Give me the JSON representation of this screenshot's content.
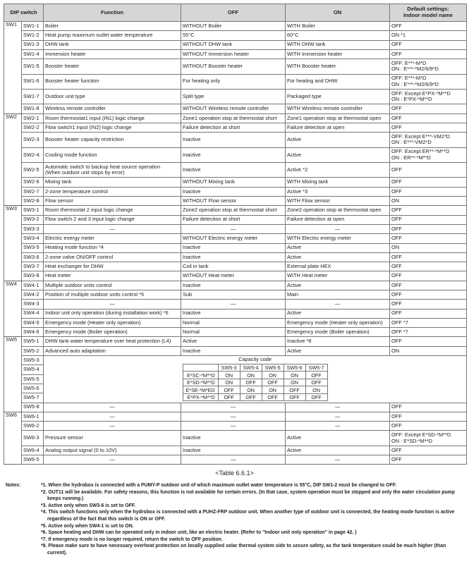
{
  "header": {
    "dip_switch": "DIP switch",
    "function": "Function",
    "off": "OFF",
    "on": "ON",
    "default": "Default settings:\nIndoor model name"
  },
  "groups": [
    {
      "name": "SW1",
      "rows": [
        {
          "id": "SW1-1",
          "function": "Boiler",
          "off": "WITHOUT Boiler",
          "on": "WITH Boiler",
          "default": "OFF"
        },
        {
          "id": "SW1-2",
          "function": "Heat pump maximum outlet water temperature",
          "off": "55°C",
          "on": "60°C",
          "default": "ON *1"
        },
        {
          "id": "SW1-3",
          "function": "DHW tank",
          "off": "WITHOUT DHW tank",
          "on": "WITH DHW tank",
          "default": "OFF"
        },
        {
          "id": "SW1-4",
          "function": "Immersion heater",
          "off": "WITHOUT Immersion heater",
          "on": "WITH Immersion heater",
          "default": "OFF"
        },
        {
          "id": "SW1-5",
          "function": "Booster heater",
          "off": "WITHOUT Booster heater",
          "on": "WITH Booster heater",
          "default": "OFF: E***-M*D\nON  : E***-*M2/6/9*D"
        },
        {
          "id": "SW1-6",
          "function": "Booster heater function",
          "off": "For heating only",
          "on": "For heating and DHW",
          "default": "OFF: E***-M*D\nON  : E***-*M2/6/9*D"
        },
        {
          "id": "SW1-7",
          "function": "Outdoor unit type",
          "off": "Split type",
          "on": "Packaged type",
          "default": "OFF: Except E*PX-*M**D\nON :  E*PX-*M**D"
        },
        {
          "id": "SW1-8",
          "function": "Wireless remote controller",
          "off": "WITHOUT Wireless remote controller",
          "on": "WITH Wireless remote controller",
          "default": "OFF"
        }
      ]
    },
    {
      "name": "SW2",
      "rows": [
        {
          "id": "SW2-1",
          "function": "Room thermostat1 input (IN1) logic change",
          "off": "Zone1 operation stop at thermostat short",
          "on": "Zone1 operation stop at thermostat open",
          "default": "OFF"
        },
        {
          "id": "SW2-2",
          "function": "Flow switch1 input (IN2) logic change",
          "off": "Failure detection at short",
          "on": "Failure detection at open",
          "default": "OFF"
        },
        {
          "id": "SW2-3",
          "function": "Booster heater capacity restriction",
          "off": "Inactive",
          "on": "Active",
          "default": "OFF: Except E***-VM2*D\nON  : E***-VM2*D"
        },
        {
          "id": "SW2-4",
          "function": "Cooling mode function",
          "off": "Inactive",
          "on": "Active",
          "default": "OFF: Except ER**-*M**D\nON  : ER**-*M**D"
        },
        {
          "id": "SW2-5",
          "function": "Automatic switch to backup heat source operation\n(When outdoor unit stops by error)",
          "off": "Inactive",
          "on": "Active *2",
          "default": "OFF"
        },
        {
          "id": "SW2-6",
          "function": "Mixing tank",
          "off": "WITHOUT Mixing tank",
          "on": "WITH Mixing tank",
          "default": "OFF"
        },
        {
          "id": "SW2-7",
          "function": "2-zone temperature control",
          "off": "Inactive",
          "on": "Active *3",
          "default": "OFF"
        },
        {
          "id": "SW2-8",
          "function": "Flow sensor",
          "off": "WITHOUT Flow sensor",
          "on": "WITH Flow sensor",
          "default": "ON"
        }
      ]
    },
    {
      "name": "SW3",
      "rows": [
        {
          "id": "SW3-1",
          "function": "Room thermostat 2 input logic change",
          "off": "Zone2 operation stop at thermostat short",
          "on": "Zone2 operation stop at thermostat open",
          "default": "OFF"
        },
        {
          "id": "SW3-2",
          "function": "Flow switch 2 and 3 input logic change",
          "off": "Failure detection at short",
          "on": "Failure detection at open",
          "default": "OFF"
        },
        {
          "id": "SW3-3",
          "function": "—",
          "off": "—",
          "on": "—",
          "default": "OFF"
        },
        {
          "id": "SW3-4",
          "function": "Electric energy meter",
          "off": "WITHOUT Electric energy meter",
          "on": "WITH Electric energy meter",
          "default": "OFF"
        },
        {
          "id": "SW3-5",
          "function": "Heating mode function *4",
          "off": "Inactive",
          "on": "Active",
          "default": "ON"
        },
        {
          "id": "SW3-6",
          "function": "2-zone valve ON/OFF control",
          "off": "Inactive",
          "on": "Active",
          "default": "OFF"
        },
        {
          "id": "SW3-7",
          "function": "Heat exchanger for DHW",
          "off": "Coil in tank",
          "on": "External plate HEX",
          "default": "OFF"
        },
        {
          "id": "SW3-8",
          "function": "Heat meter",
          "off": "WITHOUT Heat meter",
          "on": "WITH Heat meter",
          "default": "OFF"
        }
      ]
    },
    {
      "name": "SW4",
      "rows": [
        {
          "id": "SW4-1",
          "function": "Multiple outdoor units control",
          "off": "Inactive",
          "on": "Active",
          "default": "OFF"
        },
        {
          "id": "SW4-2",
          "function": "Position of multiple outdoor units control *5",
          "off": "Sub",
          "on": "Main",
          "default": "OFF"
        },
        {
          "id": "SW4-3",
          "function": "—",
          "off": "—",
          "on": "—",
          "default": "OFF"
        },
        {
          "id": "SW4-4",
          "function": "Indoor unit only operation (during installation work) *6",
          "off": "Inactive",
          "on": "Active",
          "default": "OFF"
        },
        {
          "id": "SW4-5",
          "function": "Emergency mode (Heater only operation)",
          "off": "Normal",
          "on": "Emergency mode (Heater only operation)",
          "default": "OFF *7"
        },
        {
          "id": "SW4-6",
          "function": "Emergency mode (Boiler operation)",
          "off": "Normal",
          "on": "Emergency mode (Boiler operation)",
          "default": "OFF *7"
        }
      ]
    },
    {
      "name": "SW5",
      "rows": [
        {
          "id": "SW5-1",
          "function": "DHW tank water temperature over heat protection (L4)",
          "off": "Active",
          "on": "Inactive *8",
          "default": "OFF"
        },
        {
          "id": "SW5-2",
          "function": "Advanced auto adaptation",
          "off": "Inactive",
          "on": "Active",
          "default": "ON"
        },
        {
          "id": "SW5-3",
          "capacity": true
        },
        {
          "id": "SW5-4",
          "capacity": true
        },
        {
          "id": "SW5-5",
          "capacity": true
        },
        {
          "id": "SW5-6",
          "capacity": true
        },
        {
          "id": "SW5-7",
          "capacity": true
        },
        {
          "id": "SW5-8",
          "function": "—",
          "off": "—",
          "on": "—",
          "default": "OFF"
        }
      ]
    },
    {
      "name": "SW6",
      "rows": [
        {
          "id": "SW6-1",
          "function": "—",
          "off": "—",
          "on": "—",
          "default": "OFF"
        },
        {
          "id": "SW6-2",
          "function": "—",
          "off": "—",
          "on": "—",
          "default": "OFF"
        },
        {
          "id": "SW6-3",
          "function": "Pressure sensor",
          "off": "Inactive",
          "on": "Active",
          "default": "OFF: Except E*SD-*M**D\nON :  E*SD-*M**D"
        },
        {
          "id": "SW6-4",
          "function": "Analog output signal (0 to 10V)",
          "off": "Inactive",
          "on": "Active",
          "default": "OFF"
        },
        {
          "id": "SW6-5",
          "function": "—",
          "off": "—",
          "on": "—",
          "default": "OFF"
        }
      ]
    }
  ],
  "capacity_code": {
    "title": "Capacity code",
    "columns": [
      "SW5-3",
      "SW5-4",
      "SW5-5",
      "SW5-6",
      "SW5-7"
    ],
    "rows": [
      {
        "model": "E*SC-*M**D",
        "values": [
          "ON",
          "ON",
          "ON",
          "ON",
          "OFF"
        ]
      },
      {
        "model": "E*SD-*M**D",
        "values": [
          "ON",
          "OFF",
          "OFF",
          "ON",
          "OFF"
        ]
      },
      {
        "model": "E*SE-*M*ED",
        "values": [
          "OFF",
          "ON",
          "ON",
          "OFF",
          "ON"
        ]
      },
      {
        "model": "E*PX-*M**D",
        "values": [
          "OFF",
          "OFF",
          "OFF",
          "OFF",
          "OFF"
        ]
      }
    ]
  },
  "caption": "<Table 6.6.1>",
  "notes": {
    "label": "Notes:",
    "items": [
      "*1. When the hydrobox is connected with a PUMY-P outdoor unit of which maximum outlet water temperature is 55°C, DIP SW1-2 must be changed to OFF.",
      "*2. OUT11 will be available. For safety reasons, this function is not available for certain errors. (In that case, system operation must be stopped and only the water circulation pump keeps running.)",
      "*3. Active only when SW3-6 is set to OFF.",
      "*4. This switch functions only when the hydrobox is connected with a PUHZ-FRP outdoor unit. When another type of outdoor unit is connected, the heating mode function is active regardless of the fact that this switch is ON or OFF.",
      "*5. Active only when SW4-1 is set to ON.",
      "*6. Space heating and DHW can be operated only in indoor unit, like an electric heater.  (Refer to \"Indoor unit only operation\" in page 42. )",
      "*7. If emergency mode is no longer required, return the switch to OFF position.",
      "*8. Please make sure to have necessary overheat protection on locally supplied solar thermal system side to secure safety, as the tank temperature could be much higher (than current)."
    ]
  }
}
